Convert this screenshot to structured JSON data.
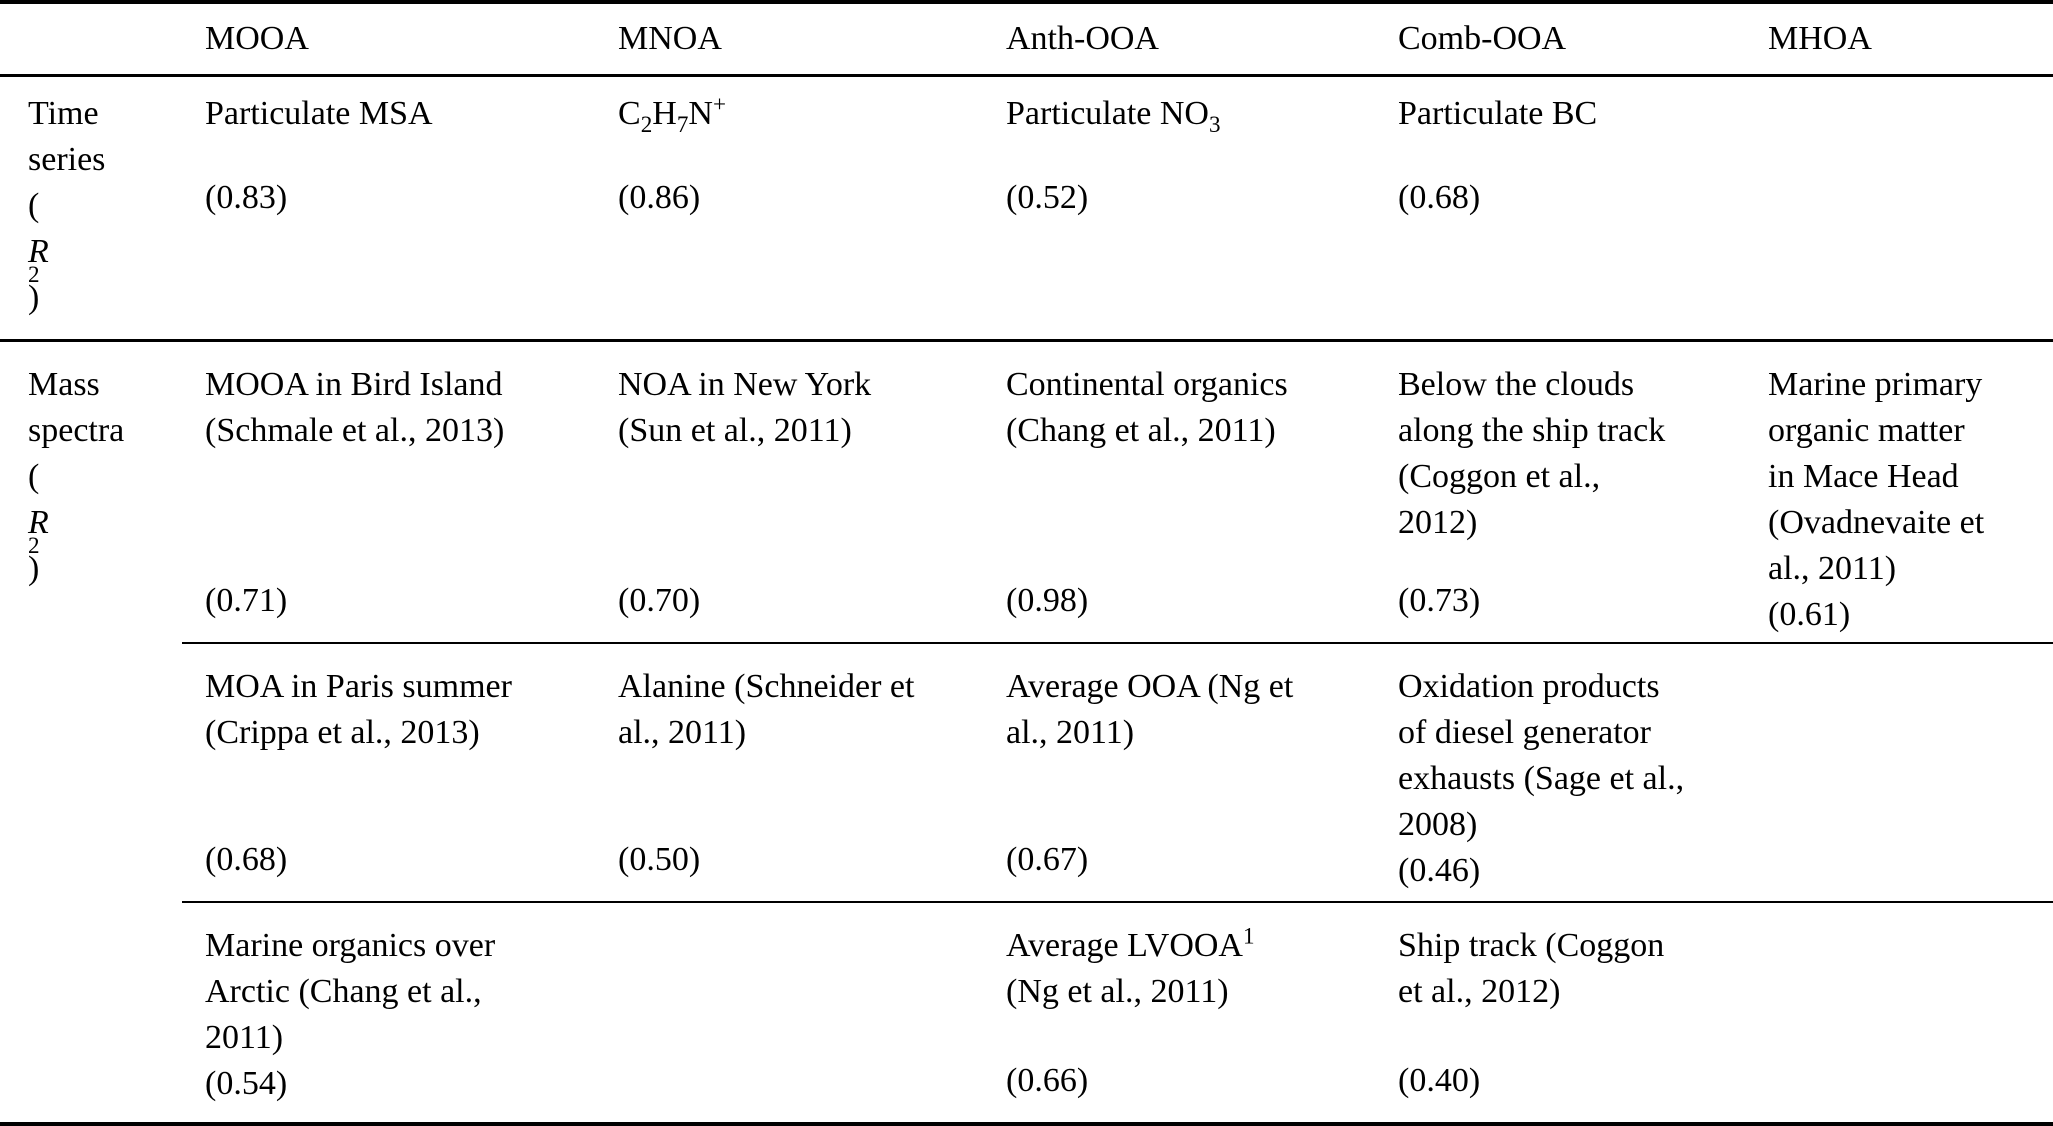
{
  "columns": [
    "",
    "MOOA",
    "MNOA",
    "Anth-OOA",
    "Comb-OOA",
    "MHOA"
  ],
  "time_series": {
    "label_rich": "Time\nseries\n(<i>R</i><sup>2</sup>)",
    "cells": [
      {
        "name_rich": "Particulate MSA",
        "value": "(0.83)"
      },
      {
        "name_rich": "C<sub>2</sub>H<sub>7</sub>N<sup>+</sup>",
        "value": "(0.86)"
      },
      {
        "name_rich": "Particulate NO<sub>3</sub>",
        "value": "(0.52)"
      },
      {
        "name_rich": "Particulate BC",
        "value": "(0.68)"
      },
      {
        "name_rich": "",
        "value": ""
      }
    ]
  },
  "mass_spectra": {
    "label_rich": "Mass\nspectra\n(<i>R</i><sup>2</sup>)",
    "subrows": [
      {
        "cells": [
          {
            "name_rich": "MOOA in Bird Island\n(Schmale et al., 2013)",
            "value": "(0.71)"
          },
          {
            "name_rich": "NOA in New York\n(Sun et al., 2011)",
            "value": "(0.70)"
          },
          {
            "name_rich": "Continental organics\n(Chang et al., 2011)",
            "value": "(0.98)"
          },
          {
            "name_rich": "Below the clouds\nalong the ship track\n(Coggon et al.,\n2012)",
            "value": "(0.73)"
          },
          {
            "name_rich": "Marine primary\norganic matter\nin Mace Head\n(Ovadnevaite et\nal., 2011)",
            "value": "(0.61)"
          }
        ]
      },
      {
        "cells": [
          {
            "name_rich": "MOA in Paris summer\n(Crippa et al., 2013)",
            "value": "(0.68)"
          },
          {
            "name_rich": "Alanine (Schneider et\nal., 2011)",
            "value": "(0.50)"
          },
          {
            "name_rich": "Average OOA (Ng et\nal., 2011)",
            "value": "(0.67)"
          },
          {
            "name_rich": "Oxidation products\nof diesel generator\nexhausts (Sage et al.,\n2008)",
            "value": "(0.46)"
          },
          {
            "name_rich": "",
            "value": ""
          }
        ]
      },
      {
        "cells": [
          {
            "name_rich": "Marine organics over\nArctic (Chang et al.,\n2011)",
            "value": "(0.54)"
          },
          {
            "name_rich": "",
            "value": ""
          },
          {
            "name_rich": "Average LVOOA<sup>1</sup>\n(Ng et al., 2011)",
            "value": "(0.66)"
          },
          {
            "name_rich": "Ship track (Coggon\net al., 2012)",
            "value": "(0.40)"
          },
          {
            "name_rich": "",
            "value": ""
          }
        ]
      }
    ]
  }
}
